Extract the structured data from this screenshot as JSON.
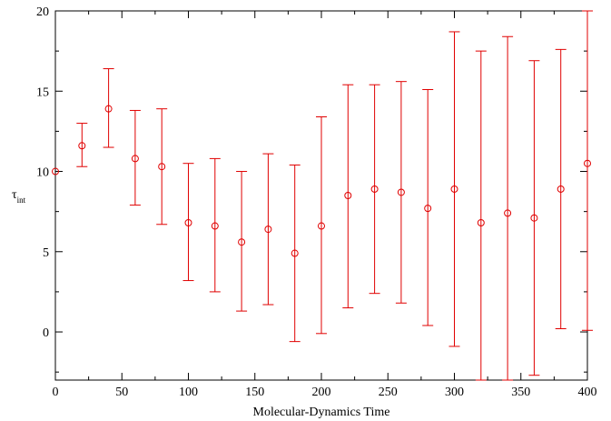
{
  "chart_data": {
    "type": "scatter",
    "title": "",
    "xlabel": "Molecular-Dynamics Time",
    "ylabel": {
      "main": "τ",
      "sub": "int"
    },
    "xlim": [
      0,
      400
    ],
    "ylim": [
      -3,
      20
    ],
    "x_ticks": [
      0,
      50,
      100,
      150,
      200,
      250,
      300,
      350,
      400
    ],
    "y_ticks": [
      0,
      5,
      10,
      15,
      20
    ],
    "grid": false,
    "color": "#e00000",
    "marker": "open-circle",
    "points": [
      {
        "x": 0,
        "y": 10.0,
        "lo": null,
        "hi": null
      },
      {
        "x": 20,
        "y": 11.6,
        "lo": 10.3,
        "hi": 13.0
      },
      {
        "x": 40,
        "y": 13.9,
        "lo": 11.5,
        "hi": 16.4
      },
      {
        "x": 60,
        "y": 10.8,
        "lo": 7.9,
        "hi": 13.8
      },
      {
        "x": 80,
        "y": 10.3,
        "lo": 6.7,
        "hi": 13.9
      },
      {
        "x": 100,
        "y": 6.8,
        "lo": 3.2,
        "hi": 10.5
      },
      {
        "x": 120,
        "y": 6.6,
        "lo": 2.5,
        "hi": 10.8
      },
      {
        "x": 140,
        "y": 5.6,
        "lo": 1.3,
        "hi": 10.0
      },
      {
        "x": 160,
        "y": 6.4,
        "lo": 1.7,
        "hi": 11.1
      },
      {
        "x": 180,
        "y": 4.9,
        "lo": -0.6,
        "hi": 10.4
      },
      {
        "x": 200,
        "y": 6.6,
        "lo": -0.1,
        "hi": 13.4
      },
      {
        "x": 220,
        "y": 8.5,
        "lo": 1.5,
        "hi": 15.4
      },
      {
        "x": 240,
        "y": 8.9,
        "lo": 2.4,
        "hi": 15.4
      },
      {
        "x": 260,
        "y": 8.7,
        "lo": 1.8,
        "hi": 15.6
      },
      {
        "x": 280,
        "y": 7.7,
        "lo": 0.4,
        "hi": 15.1
      },
      {
        "x": 300,
        "y": 8.9,
        "lo": -0.9,
        "hi": 18.7
      },
      {
        "x": 320,
        "y": 6.8,
        "lo": -3.0,
        "hi": 17.5
      },
      {
        "x": 340,
        "y": 7.4,
        "lo": -3.0,
        "hi": 18.4
      },
      {
        "x": 360,
        "y": 7.1,
        "lo": -2.7,
        "hi": 16.9
      },
      {
        "x": 380,
        "y": 8.9,
        "lo": 0.2,
        "hi": 17.6
      },
      {
        "x": 400,
        "y": 10.5,
        "lo": 0.1,
        "hi": 20.0
      }
    ]
  }
}
